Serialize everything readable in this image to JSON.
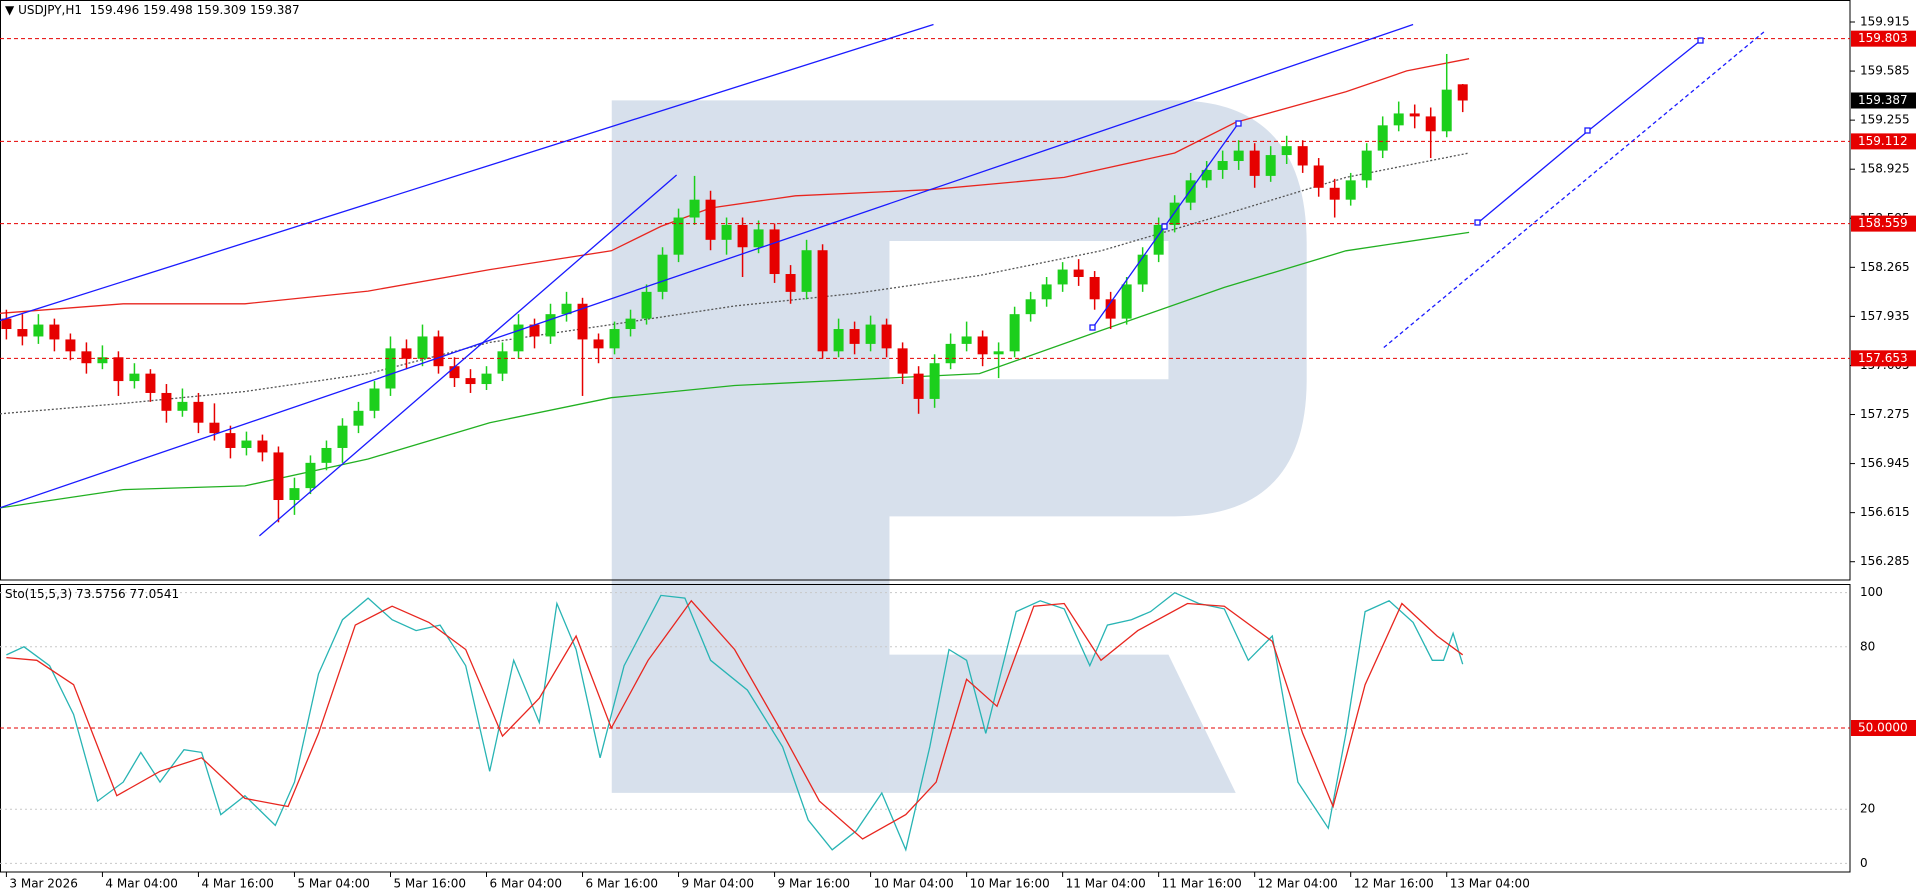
{
  "chart_data": [
    {
      "type": "candlestick",
      "symbol": "USDJPY,H1",
      "up_color": "#1ccf1c",
      "down_color": "#e60000",
      "candles": [
        [
          157.92,
          157.98,
          157.78,
          157.85
        ],
        [
          157.85,
          157.95,
          157.74,
          157.8
        ],
        [
          157.8,
          157.95,
          157.75,
          157.88
        ],
        [
          157.88,
          157.92,
          157.7,
          157.78
        ],
        [
          157.78,
          157.82,
          157.64,
          157.7
        ],
        [
          157.7,
          157.76,
          157.55,
          157.62
        ],
        [
          157.62,
          157.74,
          157.58,
          157.66
        ],
        [
          157.66,
          157.7,
          157.4,
          157.5
        ],
        [
          157.5,
          157.62,
          157.45,
          157.55
        ],
        [
          157.55,
          157.58,
          157.36,
          157.42
        ],
        [
          157.42,
          157.48,
          157.22,
          157.3
        ],
        [
          157.3,
          157.45,
          157.26,
          157.36
        ],
        [
          157.36,
          157.42,
          157.15,
          157.22
        ],
        [
          157.22,
          157.35,
          157.1,
          157.15
        ],
        [
          157.15,
          157.2,
          156.98,
          157.05
        ],
        [
          157.05,
          157.16,
          157.0,
          157.1
        ],
        [
          157.1,
          157.14,
          156.96,
          157.02
        ],
        [
          157.02,
          157.06,
          156.55,
          156.7
        ],
        [
          156.7,
          156.85,
          156.6,
          156.78
        ],
        [
          156.78,
          157.0,
          156.74,
          156.95
        ],
        [
          156.95,
          157.1,
          156.9,
          157.05
        ],
        [
          157.05,
          157.25,
          156.95,
          157.2
        ],
        [
          157.2,
          157.36,
          157.15,
          157.3
        ],
        [
          157.3,
          157.5,
          157.25,
          157.45
        ],
        [
          157.45,
          157.8,
          157.4,
          157.72
        ],
        [
          157.72,
          157.78,
          157.58,
          157.65
        ],
        [
          157.65,
          157.88,
          157.6,
          157.8
        ],
        [
          157.8,
          157.84,
          157.55,
          157.6
        ],
        [
          157.6,
          157.66,
          157.46,
          157.52
        ],
        [
          157.52,
          157.58,
          157.42,
          157.48
        ],
        [
          157.48,
          157.6,
          157.44,
          157.55
        ],
        [
          157.55,
          157.76,
          157.5,
          157.7
        ],
        [
          157.7,
          157.95,
          157.65,
          157.88
        ],
        [
          157.88,
          157.92,
          157.72,
          157.8
        ],
        [
          157.8,
          158.02,
          157.75,
          157.95
        ],
        [
          157.95,
          158.1,
          157.9,
          158.02
        ],
        [
          158.02,
          158.06,
          157.4,
          157.78
        ],
        [
          157.78,
          157.82,
          157.62,
          157.72
        ],
        [
          157.72,
          157.9,
          157.68,
          157.85
        ],
        [
          157.85,
          157.98,
          157.8,
          157.92
        ],
        [
          157.92,
          158.15,
          157.88,
          158.1
        ],
        [
          158.1,
          158.4,
          158.05,
          158.35
        ],
        [
          158.35,
          158.66,
          158.3,
          158.6
        ],
        [
          158.6,
          158.88,
          158.55,
          158.72
        ],
        [
          158.72,
          158.78,
          158.38,
          158.45
        ],
        [
          158.45,
          158.6,
          158.35,
          158.55
        ],
        [
          158.55,
          158.6,
          158.2,
          158.4
        ],
        [
          158.4,
          158.58,
          158.36,
          158.52
        ],
        [
          158.52,
          158.56,
          158.16,
          158.22
        ],
        [
          158.22,
          158.28,
          158.02,
          158.1
        ],
        [
          158.1,
          158.45,
          158.05,
          158.38
        ],
        [
          158.38,
          158.42,
          157.65,
          157.7
        ],
        [
          157.7,
          157.92,
          157.66,
          157.85
        ],
        [
          157.85,
          157.9,
          157.68,
          157.75
        ],
        [
          157.75,
          157.94,
          157.7,
          157.88
        ],
        [
          157.88,
          157.92,
          157.66,
          157.72
        ],
        [
          157.72,
          157.76,
          157.48,
          157.55
        ],
        [
          157.55,
          157.6,
          157.28,
          157.38
        ],
        [
          157.38,
          157.68,
          157.32,
          157.62
        ],
        [
          157.62,
          157.82,
          157.58,
          157.75
        ],
        [
          157.75,
          157.9,
          157.7,
          157.8
        ],
        [
          157.8,
          157.84,
          157.6,
          157.68
        ],
        [
          157.68,
          157.76,
          157.52,
          157.7
        ],
        [
          157.7,
          158.0,
          157.66,
          157.95
        ],
        [
          157.95,
          158.1,
          157.9,
          158.05
        ],
        [
          158.05,
          158.2,
          158.0,
          158.15
        ],
        [
          158.15,
          158.3,
          158.1,
          158.25
        ],
        [
          158.25,
          158.32,
          158.14,
          158.2
        ],
        [
          158.2,
          158.24,
          157.98,
          158.05
        ],
        [
          158.05,
          158.1,
          157.85,
          157.92
        ],
        [
          157.92,
          158.2,
          157.88,
          158.15
        ],
        [
          158.15,
          158.4,
          158.1,
          158.35
        ],
        [
          158.35,
          158.6,
          158.3,
          158.55
        ],
        [
          158.55,
          158.75,
          158.5,
          158.7
        ],
        [
          158.7,
          158.9,
          158.65,
          158.85
        ],
        [
          158.85,
          158.98,
          158.8,
          158.92
        ],
        [
          158.92,
          159.05,
          158.86,
          158.98
        ],
        [
          158.98,
          159.12,
          158.92,
          159.05
        ],
        [
          159.05,
          159.1,
          158.8,
          158.88
        ],
        [
          158.88,
          159.08,
          158.84,
          159.02
        ],
        [
          159.02,
          159.15,
          158.96,
          159.08
        ],
        [
          159.08,
          159.12,
          158.9,
          158.95
        ],
        [
          158.95,
          159.0,
          158.74,
          158.8
        ],
        [
          158.8,
          158.86,
          158.6,
          158.72
        ],
        [
          158.72,
          158.9,
          158.68,
          158.85
        ],
        [
          158.85,
          159.1,
          158.8,
          159.05
        ],
        [
          159.05,
          159.28,
          159.0,
          159.22
        ],
        [
          159.22,
          159.38,
          159.18,
          159.3
        ],
        [
          159.3,
          159.36,
          159.2,
          159.28
        ],
        [
          159.28,
          159.34,
          159.0,
          159.18
        ],
        [
          159.18,
          159.7,
          159.14,
          159.46
        ],
        [
          159.496,
          159.498,
          159.309,
          159.387
        ]
      ],
      "xlim": [
        -0.4,
        115.2
      ],
      "xticks": [
        {
          "value": 0,
          "label": "3 Mar 2026"
        },
        {
          "value": 6,
          "label": "4 Mar 04:00"
        },
        {
          "value": 12,
          "label": "4 Mar 16:00"
        },
        {
          "value": 18,
          "label": "5 Mar 04:00"
        },
        {
          "value": 24,
          "label": "5 Mar 16:00"
        },
        {
          "value": 30,
          "label": "6 Mar 04:00"
        },
        {
          "value": 36,
          "label": "6 Mar 16:00"
        },
        {
          "value": 42,
          "label": "9 Mar 04:00"
        },
        {
          "value": 48,
          "label": "9 Mar 16:00"
        },
        {
          "value": 54,
          "label": "10 Mar 04:00"
        },
        {
          "value": 60,
          "label": "10 Mar 16:00"
        },
        {
          "value": 66,
          "label": "11 Mar 04:00"
        },
        {
          "value": 72,
          "label": "11 Mar 16:00"
        },
        {
          "value": 78,
          "label": "12 Mar 04:00"
        },
        {
          "value": 84,
          "label": "12 Mar 16:00"
        },
        {
          "value": 90,
          "label": "13 Mar 04:00"
        }
      ],
      "ylim": [
        156.162,
        160.063
      ],
      "yticks": [
        159.915,
        159.585,
        159.255,
        158.925,
        158.595,
        158.265,
        157.935,
        157.605,
        157.275,
        156.945,
        156.615,
        156.285
      ],
      "levels": [
        159.803,
        159.112,
        158.559,
        157.653
      ],
      "level_color": "#e60000",
      "lines": [
        {
          "color": "#e8261f",
          "style": "solid",
          "x": [
            -0.4,
            7.3,
            14.9,
            22.6,
            30.2,
            37.8,
            40.9,
            44,
            49.3,
            57.7,
            66.1,
            73,
            76.8,
            83.7,
            87.5,
            91.4
          ],
          "values": [
            157.956,
            158.02,
            158.02,
            158.105,
            158.25,
            158.376,
            158.54,
            158.664,
            158.746,
            158.787,
            158.87,
            159.034,
            159.24,
            159.446,
            159.586,
            159.668
          ]
        },
        {
          "color": "#22b022",
          "style": "solid",
          "x": [
            -0.4,
            7.3,
            14.9,
            22.6,
            30.2,
            37.8,
            45.5,
            53.1,
            60.8,
            68.4,
            76.1,
            83.7,
            91.4
          ],
          "values": [
            156.647,
            156.77,
            156.795,
            156.976,
            157.22,
            157.388,
            157.47,
            157.51,
            157.55,
            157.84,
            158.13,
            158.376,
            158.5
          ]
        },
        {
          "color": "#555555",
          "style": "dotted",
          "x": [
            -0.4,
            7.3,
            14.9,
            22.6,
            30.2,
            37.8,
            45.5,
            53.1,
            60.8,
            68.4,
            76.1,
            83.7,
            91.4
          ],
          "values": [
            157.28,
            157.35,
            157.43,
            157.55,
            157.76,
            157.88,
            158.005,
            158.09,
            158.21,
            158.376,
            158.62,
            158.87,
            159.034
          ]
        }
      ]
    },
    {
      "type": "line",
      "title": "Sto(15,5,3)",
      "ylim": [
        -3.2,
        103.2
      ],
      "yticks": [
        0,
        20,
        80,
        100
      ],
      "grid": true,
      "levels": [
        {
          "value": 50,
          "label": "50.0000"
        }
      ],
      "level_color": "#e60000",
      "series": [
        {
          "color": "#28b4b4",
          "x": [
            0,
            1.1,
            2.7,
            4.2,
            5.7,
            7.3,
            8.4,
            9.6,
            11.1,
            12.2,
            13.4,
            14.9,
            16.8,
            18,
            19.5,
            21,
            22.6,
            24.1,
            25.6,
            27.1,
            28.7,
            30.2,
            31.7,
            33.3,
            34.4,
            35.6,
            37.1,
            38.6,
            40.9,
            42.4,
            44,
            46.3,
            48.5,
            50.1,
            51.6,
            53.1,
            54.7,
            56.2,
            57.7,
            58.9,
            60,
            61.2,
            63.1,
            64.6,
            66.1,
            67.7,
            68.8,
            70.3,
            71.5,
            73,
            74.5,
            76.1,
            77.6,
            79.1,
            80.7,
            82.6,
            83.7,
            84.9,
            86.4,
            87.9,
            89.1,
            89.8,
            90.4,
            91
          ],
          "values": [
            77,
            80,
            73,
            55,
            23,
            30,
            41,
            30,
            42,
            41,
            18,
            25,
            14,
            30,
            70,
            90,
            98,
            90,
            86,
            88,
            73,
            34,
            75,
            52,
            96,
            79,
            39,
            73,
            99,
            98,
            75,
            64,
            43,
            16,
            5,
            12,
            26,
            5,
            43,
            79,
            75,
            48,
            93,
            97,
            94,
            73,
            88,
            90,
            93,
            100,
            96,
            94,
            75,
            84,
            30,
            13,
            48,
            93,
            97,
            89,
            75,
            75,
            85,
            73.5756
          ]
        },
        {
          "color": "#e8261f",
          "x": [
            0,
            1.9,
            4.2,
            6.9,
            9.6,
            12.2,
            14.9,
            17.6,
            19.5,
            21.8,
            24.1,
            26.4,
            28.7,
            31,
            33.3,
            35.6,
            37.8,
            40.1,
            42.8,
            45.5,
            48.5,
            50.8,
            53.5,
            56.2,
            58.1,
            60,
            61.9,
            64.2,
            66.1,
            68.4,
            70.7,
            73.8,
            76.1,
            79.1,
            81,
            82.9,
            84.9,
            87.2,
            89.4,
            91
          ],
          "values": [
            76,
            75,
            66,
            25,
            34,
            39,
            24,
            21,
            48,
            88,
            95,
            89,
            79,
            47,
            61,
            84,
            50,
            75,
            97,
            79,
            48,
            23,
            9,
            18,
            30,
            68,
            58,
            95,
            96,
            75,
            86,
            96,
            95,
            82,
            48,
            21,
            66,
            96,
            84,
            77.0541
          ]
        }
      ]
    }
  ]
}
